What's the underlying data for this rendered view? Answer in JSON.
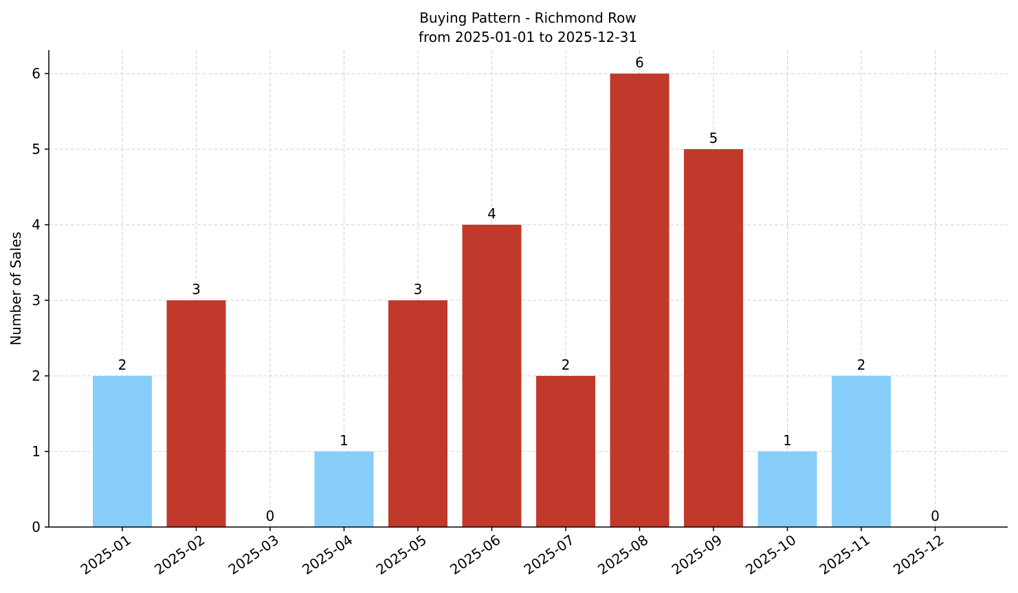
{
  "chart_data": {
    "type": "bar",
    "title": "Buying Pattern - Richmond Row",
    "subtitle": "from 2025-01-01 to 2025-12-31",
    "y_label": "Number of Sales",
    "categories": [
      "2025-01",
      "2025-02",
      "2025-03",
      "2025-04",
      "2025-05",
      "2025-06",
      "2025-07",
      "2025-08",
      "2025-09",
      "2025-10",
      "2025-11",
      "2025-12"
    ],
    "values": [
      2,
      3,
      0,
      1,
      3,
      4,
      2,
      6,
      5,
      1,
      2,
      0
    ],
    "colors": [
      "#87cefa",
      "#c0392b",
      "#87cefa",
      "#87cefa",
      "#c0392b",
      "#c0392b",
      "#c0392b",
      "#c0392b",
      "#c0392b",
      "#87cefa",
      "#87cefa",
      "#87cefa"
    ],
    "ylim": [
      0,
      6.31
    ],
    "yticks": [
      0,
      1,
      2,
      3,
      4,
      5,
      6
    ],
    "grid": true
  }
}
